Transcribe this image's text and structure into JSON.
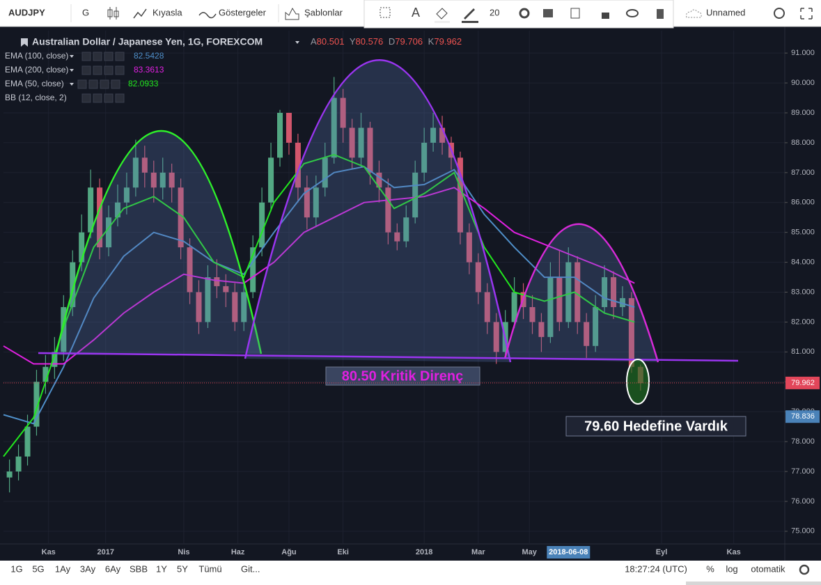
{
  "toolbar": {
    "symbol": "AUDJPY",
    "interval": "G",
    "compare": "Kıyasla",
    "indicators": "Göstergeler",
    "templates": "Şablonlar",
    "font_size": "20",
    "layout": "Unnamed"
  },
  "bottom_bar": {
    "ranges": [
      "1G",
      "5G",
      "1Ay",
      "3Ay",
      "6Ay",
      "SBB",
      "1Y",
      "5Y",
      "Tümü"
    ],
    "goto": "Git...",
    "clock": "18:27:24 (UTC)",
    "percent": "%",
    "log": "log",
    "auto": "otomatik"
  },
  "chart_data": {
    "type": "candlestick",
    "title": "Australian Dollar / Japanese Yen, 1G, FOREXCOM",
    "ohlc_keys": [
      "A",
      "Y",
      "D",
      "K"
    ],
    "up_color": "#53a883",
    "down_color": "#d2566c",
    "x": [
      2,
      5,
      8,
      11,
      14,
      17,
      20,
      23,
      26,
      29,
      32,
      35,
      38,
      41,
      44,
      47,
      50,
      53,
      56,
      59,
      62,
      65,
      68,
      71,
      74,
      77,
      80,
      83,
      86,
      89,
      92,
      95,
      98,
      101,
      104,
      107,
      110,
      113,
      116,
      119,
      122,
      125,
      128,
      131,
      134,
      137,
      140,
      143,
      146,
      149,
      152,
      155,
      158,
      161,
      164,
      167,
      170,
      173,
      176,
      179,
      182,
      185,
      188,
      191,
      194,
      197,
      200,
      203,
      206,
      209,
      212
    ],
    "open": [
      76.8,
      77.0,
      77.5,
      78.5,
      80.0,
      80.5,
      81.0,
      82.5,
      84.0,
      85.0,
      86.5,
      84.5,
      85.5,
      86.0,
      86.5,
      87.5,
      87.0,
      86.5,
      87.0,
      86.5,
      84.5,
      83.0,
      82.0,
      83.5,
      83.2,
      83.0,
      82.0,
      83.0,
      84.5,
      86.0,
      87.5,
      89.0,
      88.0,
      86.5,
      85.5,
      86.5,
      87.5,
      89.5,
      88.5,
      87.5,
      88.5,
      87.0,
      86.5,
      85.0,
      84.7,
      85.5,
      87.0,
      88.0,
      88.5,
      88.0,
      87.5,
      85.0,
      84.0,
      83.0,
      82.0,
      81.0,
      82.0,
      83.0,
      82.5,
      82.0,
      81.5,
      83.5,
      82.0,
      84.0,
      82.0,
      81.2,
      82.5,
      83.5,
      82.5,
      82.8,
      80.501
    ],
    "high": [
      77.4,
      77.9,
      78.9,
      80.4,
      80.9,
      81.5,
      82.9,
      84.4,
      85.6,
      87.1,
      86.8,
      85.9,
      86.6,
      87.0,
      88.1,
      87.9,
      87.4,
      87.5,
      87.3,
      86.8,
      84.8,
      83.4,
      83.9,
      84.1,
      83.6,
      83.3,
      83.4,
      84.9,
      86.5,
      88.0,
      89.1,
      89.0,
      88.3,
      86.9,
      86.9,
      88.0,
      90.2,
      89.8,
      88.8,
      89.0,
      88.7,
      87.4,
      86.8,
      85.3,
      85.9,
      87.4,
      88.5,
      89.0,
      88.9,
      88.2,
      87.7,
      85.3,
      84.3,
      83.3,
      82.3,
      82.4,
      83.5,
      83.3,
      82.9,
      82.3,
      84.0,
      84.4,
      84.5,
      84.2,
      82.3,
      82.9,
      83.9,
      83.7,
      83.2,
      83.0,
      80.576
    ],
    "low": [
      76.3,
      76.7,
      77.2,
      78.2,
      79.6,
      80.1,
      80.7,
      82.2,
      83.7,
      84.8,
      84.1,
      84.2,
      85.2,
      85.6,
      86.2,
      86.5,
      86.0,
      86.1,
      86.0,
      84.1,
      82.6,
      81.6,
      81.8,
      82.8,
      82.5,
      81.7,
      81.7,
      82.8,
      84.2,
      85.7,
      87.2,
      87.6,
      86.0,
      85.1,
      85.2,
      86.2,
      87.3,
      88.0,
      87.1,
      87.2,
      86.6,
      86.0,
      84.6,
      84.4,
      84.5,
      85.3,
      86.7,
      87.7,
      87.6,
      87.1,
      84.6,
      83.6,
      82.6,
      81.6,
      80.6,
      80.8,
      81.8,
      82.1,
      81.6,
      81.0,
      81.3,
      81.7,
      81.8,
      81.6,
      80.8,
      81.0,
      82.3,
      82.1,
      82.2,
      80.3,
      79.706
    ],
    "close": [
      77.0,
      77.5,
      78.5,
      80.0,
      80.5,
      81.0,
      82.5,
      84.0,
      85.0,
      86.5,
      84.5,
      85.5,
      86.0,
      86.5,
      87.5,
      87.0,
      86.5,
      87.0,
      86.5,
      84.5,
      83.0,
      82.0,
      83.5,
      83.2,
      83.0,
      82.0,
      83.0,
      84.5,
      86.0,
      87.5,
      89.0,
      88.0,
      86.5,
      85.5,
      86.5,
      87.5,
      89.5,
      88.5,
      87.5,
      88.5,
      87.0,
      86.5,
      85.0,
      84.7,
      85.5,
      87.0,
      88.0,
      88.5,
      88.0,
      87.5,
      85.0,
      84.0,
      83.0,
      82.0,
      81.0,
      82.0,
      83.0,
      82.5,
      82.0,
      81.5,
      83.5,
      82.0,
      84.0,
      82.0,
      81.2,
      82.5,
      83.5,
      82.5,
      82.8,
      80.5,
      79.962
    ],
    "line_x": [
      0,
      10,
      20,
      30,
      40,
      50,
      60,
      70,
      80,
      90,
      100,
      110,
      120,
      130,
      140,
      150,
      160,
      170,
      180,
      190,
      200,
      210
    ],
    "lines": [
      {
        "name": "EMA (100, close)",
        "color": "#4f8fc9",
        "last": 82.5428,
        "values": [
          78.9,
          78.6,
          80.5,
          82.8,
          84.2,
          85.0,
          84.7,
          84.0,
          83.6,
          85.0,
          86.3,
          87.0,
          87.2,
          86.5,
          86.6,
          87.1,
          85.6,
          84.5,
          83.5,
          83.5,
          82.8,
          82.5
        ]
      },
      {
        "name": "EMA (200, close)",
        "color": "#e020e0",
        "last": 83.3613,
        "values": [
          81.2,
          80.6,
          80.6,
          81.4,
          82.3,
          83.0,
          83.6,
          83.4,
          83.3,
          84.0,
          85.0,
          85.5,
          86.0,
          86.1,
          86.2,
          86.5,
          85.8,
          85.0,
          84.6,
          84.2,
          83.8,
          83.3
        ]
      },
      {
        "name": "EMA (50, close)",
        "color": "#22e81e",
        "last": 82.0933,
        "values": [
          77.5,
          78.8,
          81.8,
          84.5,
          85.8,
          86.2,
          85.5,
          84.0,
          83.5,
          86.0,
          87.3,
          87.6,
          87.2,
          85.8,
          86.3,
          87.0,
          84.5,
          83.0,
          82.7,
          83.0,
          82.3,
          82.0
        ]
      }
    ],
    "extra_indicator": "BB (12, close, 2)",
    "price_labels": [
      {
        "value": 78.836,
        "color": "#4a82b8"
      }
    ],
    "last_color": "#e2465a",
    "annotations": [
      "80.50 Kritik Direnç",
      "79.60 Hedefine Vardık"
    ],
    "xlim": [
      0,
      260
    ],
    "ylim": [
      74.6,
      91.75
    ],
    "xticks": [
      {
        "value": 15,
        "label": "Kas"
      },
      {
        "value": 34,
        "label": "2017"
      },
      {
        "value": 60,
        "label": "Nis"
      },
      {
        "value": 78,
        "label": "Haz"
      },
      {
        "value": 95,
        "label": "Ağu"
      },
      {
        "value": 113,
        "label": "Eki"
      },
      {
        "value": 140,
        "label": "2018"
      },
      {
        "value": 158,
        "label": "Mar"
      },
      {
        "value": 175,
        "label": "May"
      },
      {
        "value": 219,
        "label": "Eyl"
      },
      {
        "value": 243,
        "label": "Kas"
      }
    ],
    "crosshair_x": {
      "value": 188,
      "label": "2018-06-08"
    },
    "yticks": [
      {
        "value": 75,
        "label": "75.000"
      },
      {
        "value": 76,
        "label": "76.000"
      },
      {
        "value": 77,
        "label": "77.000"
      },
      {
        "value": 78,
        "label": "78.000"
      },
      {
        "value": 79,
        "label": "79.000"
      },
      {
        "value": 80,
        "label": "80.000"
      },
      {
        "value": 81,
        "label": "81.000"
      },
      {
        "value": 82,
        "label": "82.000"
      },
      {
        "value": 83,
        "label": "83.000"
      },
      {
        "value": 84,
        "label": "84.000"
      },
      {
        "value": 85,
        "label": "85.000"
      },
      {
        "value": 86,
        "label": "86.000"
      },
      {
        "value": 87,
        "label": "87.000"
      },
      {
        "value": 88,
        "label": "88.000"
      },
      {
        "value": 89,
        "label": "89.000"
      },
      {
        "value": 90,
        "label": "90.000"
      },
      {
        "value": 91,
        "label": "91.000"
      }
    ],
    "grid": true
  }
}
